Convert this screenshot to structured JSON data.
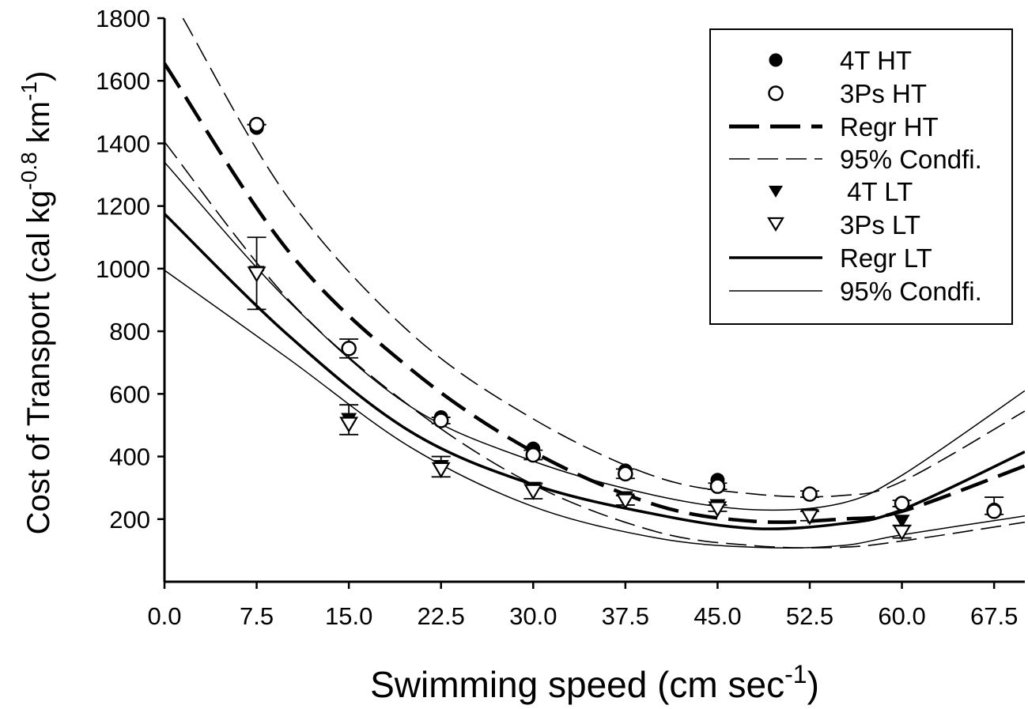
{
  "chart_data": {
    "type": "scatter",
    "title": "",
    "xlabel": {
      "main": "Swimming speed (cm sec",
      "sup": "-1",
      "end": ")"
    },
    "ylabel": {
      "main": "Cost of Transport (cal kg",
      "sup1": "-0.8",
      "mid": " km",
      "sup2": "-1",
      "end": ")"
    },
    "xlim": [
      0,
      70
    ],
    "ylim": [
      0,
      1800
    ],
    "x_ticks": [
      "0.0",
      "7.5",
      "15.0",
      "22.5",
      "30.0",
      "37.5",
      "45.0",
      "52.5",
      "60.0",
      "67.5"
    ],
    "y_ticks": [
      "200",
      "400",
      "600",
      "800",
      "1000",
      "1200",
      "1400",
      "1600",
      "1800"
    ],
    "grid": false,
    "legend_position": "top-right",
    "legend": [
      "4T HT",
      "3Ps HT",
      "Regr HT",
      "95% Condfi.",
      " 4T LT",
      "3Ps LT",
      "Regr LT",
      "95% Condfi."
    ],
    "series": [
      {
        "name": "4T HT",
        "marker": "filled-circle",
        "x": [
          7.5,
          15,
          22.5,
          30,
          37.5,
          45,
          52.5,
          60,
          67.5
        ],
        "y": [
          1450,
          745,
          525,
          425,
          355,
          325,
          280,
          250,
          230
        ]
      },
      {
        "name": "3Ps HT",
        "marker": "open-circle",
        "x": [
          7.5,
          15,
          22.5,
          30,
          37.5,
          45,
          52.5,
          60,
          67.5
        ],
        "y": [
          1460,
          745,
          515,
          405,
          345,
          305,
          280,
          250,
          225
        ],
        "err_up": [
          0,
          30,
          10,
          15,
          15,
          10,
          10,
          10,
          45
        ],
        "err_down": [
          0,
          30,
          10,
          15,
          15,
          10,
          10,
          10,
          10
        ]
      },
      {
        "name": " 4T LT",
        "marker": "filled-triangle-down",
        "x": [
          7.5,
          15,
          22.5,
          30,
          37.5,
          45,
          52.5,
          60
        ],
        "y": [
          990,
          520,
          370,
          300,
          270,
          245,
          215,
          195
        ]
      },
      {
        "name": "3Ps LT",
        "marker": "open-triangle-down",
        "x": [
          7.5,
          15,
          22.5,
          30,
          37.5,
          45,
          52.5,
          60
        ],
        "y": [
          985,
          505,
          360,
          290,
          260,
          235,
          210,
          160
        ],
        "err_up": [
          115,
          60,
          40,
          25,
          15,
          10,
          15,
          20
        ],
        "err_down": [
          115,
          35,
          25,
          25,
          15,
          10,
          15,
          20
        ]
      },
      {
        "name": "Regr HT",
        "style": "long-dash-thick",
        "x": [
          0,
          10,
          20,
          30,
          40,
          48,
          55,
          60,
          70
        ],
        "y": [
          1655,
          1060,
          680,
          415,
          245,
          193,
          200,
          225,
          370
        ]
      },
      {
        "name": "95% Condfi. HT upper",
        "style": "dash-thin",
        "x": [
          1.5,
          10,
          20,
          30,
          40,
          48,
          55,
          60,
          70
        ],
        "y": [
          1800,
          1230,
          795,
          520,
          335,
          280,
          275,
          320,
          545
        ]
      },
      {
        "name": "95% Condfi. HT lower",
        "style": "dash-thin",
        "x": [
          0,
          10,
          20,
          30,
          40,
          48,
          55,
          60,
          70
        ],
        "y": [
          1405,
          905,
          560,
          310,
          160,
          115,
          110,
          130,
          190
        ]
      },
      {
        "name": "Regr LT",
        "style": "solid-thick",
        "x": [
          0,
          10,
          20,
          30,
          40,
          48,
          55,
          60,
          70
        ],
        "y": [
          1175,
          790,
          480,
          310,
          215,
          170,
          185,
          230,
          415
        ]
      },
      {
        "name": "95% Condfi. LT upper",
        "style": "solid-thin",
        "x": [
          0,
          10,
          20,
          30,
          40,
          48,
          55,
          60,
          70
        ],
        "y": [
          1340,
          900,
          560,
          385,
          275,
          230,
          250,
          340,
          610
        ]
      },
      {
        "name": "95% Condfi. LT lower",
        "style": "solid-thin",
        "x": [
          0,
          10,
          20,
          30,
          40,
          48,
          55,
          60,
          70
        ],
        "y": [
          995,
          715,
          430,
          240,
          140,
          110,
          115,
          150,
          210
        ]
      }
    ]
  }
}
